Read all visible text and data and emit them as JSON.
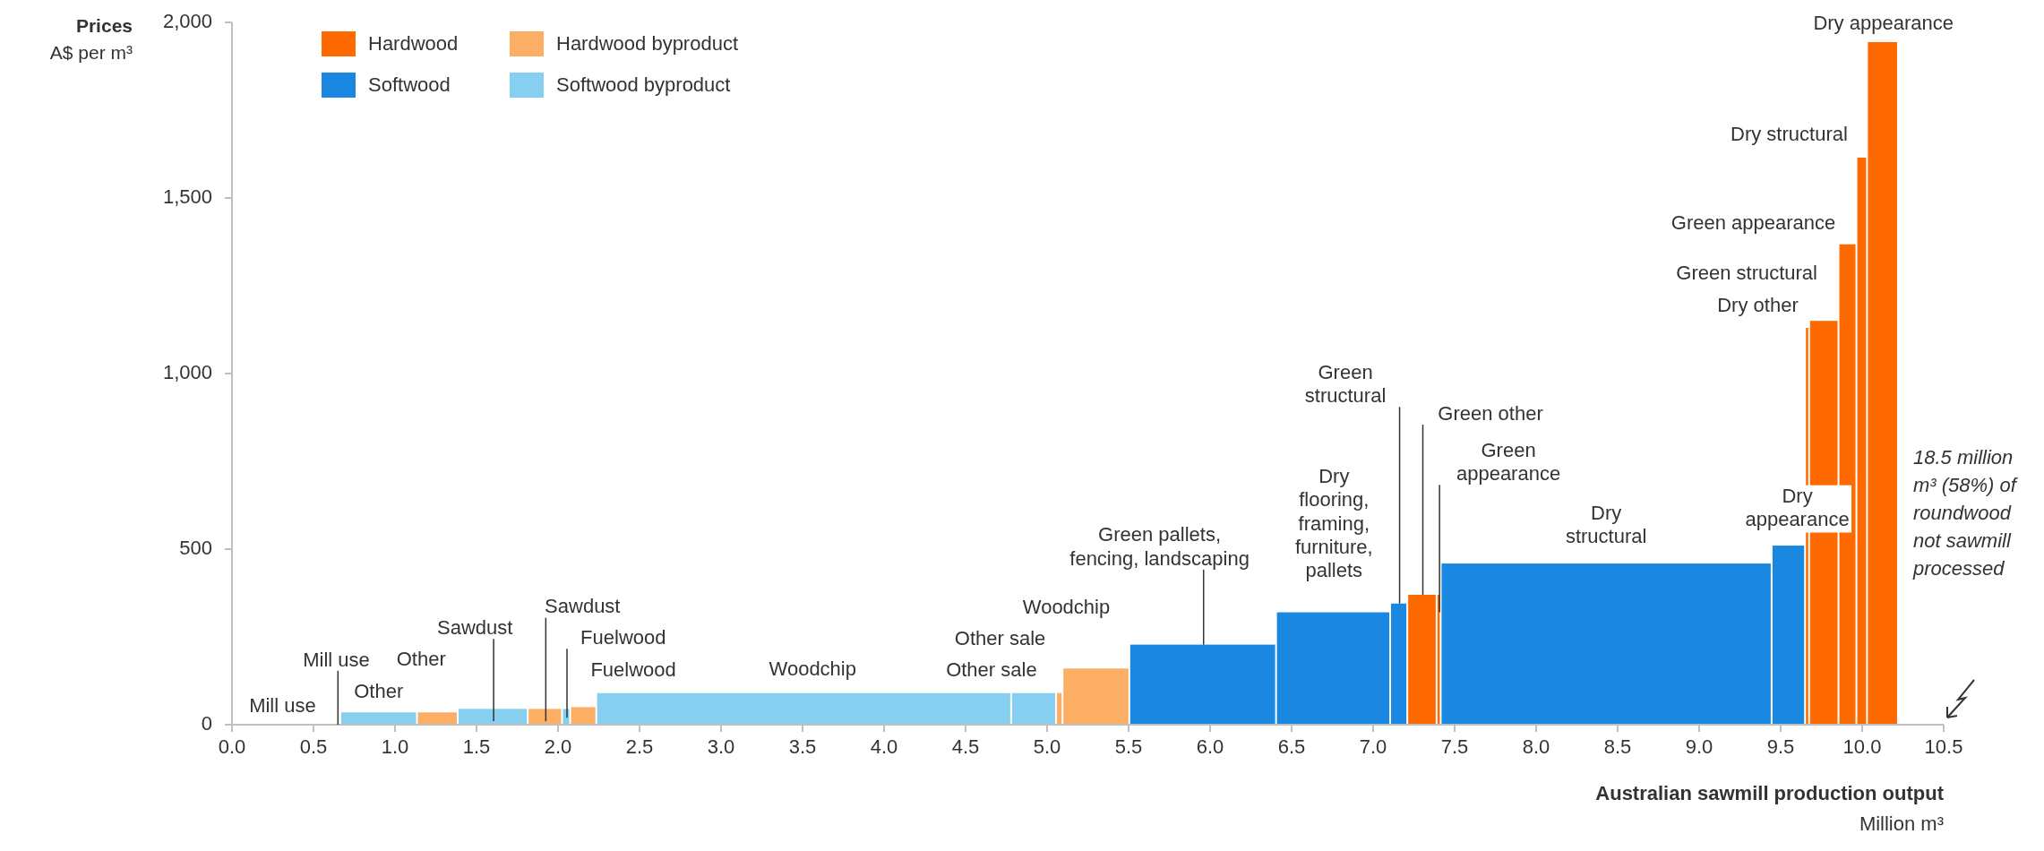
{
  "chart_data": {
    "type": "histogram",
    "ylabel": "Prices\nA$ per m³",
    "xlabel": "Australian sawmill production output\nMillion m³",
    "bins": [
      0.67,
      1.14,
      1.39,
      1.82,
      2.03,
      2.08,
      2.24,
      4.785,
      5.06,
      5.1,
      5.51,
      6.41,
      7.11,
      7.215,
      7.395,
      7.42,
      9.45,
      9.655,
      9.68,
      9.86,
      9.97,
      10.035,
      10.225
    ],
    "series": [
      {
        "name": "Hardwood",
        "color": "#ff6a00",
        "values": [
          null,
          null,
          null,
          null,
          null,
          null,
          null,
          null,
          null,
          null,
          null,
          null,
          null,
          370,
          370,
          null,
          null,
          1130,
          1150,
          1368,
          1615,
          1944
        ]
      },
      {
        "name": "Hardwood byproduct",
        "color": "#fcae65",
        "values": [
          null,
          35,
          null,
          45,
          null,
          50,
          null,
          null,
          90,
          160,
          null,
          null,
          null,
          null,
          null,
          null,
          null,
          null,
          null,
          null,
          null,
          null
        ]
      },
      {
        "name": "Softwood",
        "color": "#1a88e0",
        "values": [
          null,
          null,
          null,
          null,
          null,
          null,
          null,
          null,
          null,
          null,
          228,
          320,
          345,
          null,
          null,
          459,
          510,
          null,
          null,
          null,
          null,
          null
        ]
      },
      {
        "name": "Softwood byproduct",
        "color": "#86cff0",
        "values": [
          35,
          null,
          45,
          null,
          45,
          null,
          90,
          90,
          null,
          null,
          null,
          null,
          null,
          null,
          null,
          null,
          null,
          null,
          null,
          null,
          null,
          null
        ]
      }
    ],
    "xlim": [
      0,
      10.5
    ],
    "xticks": [
      {
        "value": 0,
        "label": "0.0"
      },
      {
        "value": 0.5,
        "label": "0.5"
      },
      {
        "value": 1,
        "label": "1.0"
      },
      {
        "value": 1.5,
        "label": "1.5"
      },
      {
        "value": 2,
        "label": "2.0"
      },
      {
        "value": 2.5,
        "label": "2.5"
      },
      {
        "value": 3,
        "label": "3.0"
      },
      {
        "value": 3.5,
        "label": "3.5"
      },
      {
        "value": 4,
        "label": "4.0"
      },
      {
        "value": 4.5,
        "label": "4.5"
      },
      {
        "value": 5,
        "label": "5.0"
      },
      {
        "value": 5.5,
        "label": "5.5"
      },
      {
        "value": 6,
        "label": "6.0"
      },
      {
        "value": 6.5,
        "label": "6.5"
      },
      {
        "value": 7,
        "label": "7.0"
      },
      {
        "value": 7.5,
        "label": "7.5"
      },
      {
        "value": 8,
        "label": "8.0"
      },
      {
        "value": 8.5,
        "label": "8.5"
      },
      {
        "value": 9,
        "label": "9.0"
      },
      {
        "value": 9.5,
        "label": "9.5"
      },
      {
        "value": 10,
        "label": "10.0"
      },
      {
        "value": 10.5,
        "label": "10.5"
      }
    ],
    "ylim": [
      0,
      2000
    ],
    "yticks": [
      0,
      500,
      {
        "value": 1000,
        "label": "1,000"
      },
      {
        "value": 1500,
        "label": "1,500"
      },
      {
        "value": 2000,
        "label": "2,000"
      }
    ],
    "legend": "top left",
    "annotations": [
      "Mill use",
      {
        "text": "Mill use",
        "x": 0.65,
        "y": 0
      },
      {
        "text": "Other",
        "x": 0.905,
        "y": 35
      },
      {
        "text": "Other",
        "x": 1.265,
        "y": 35
      },
      {
        "text": "Sawdust",
        "x": 1.605,
        "y": 10
      },
      {
        "text": "Sawdust",
        "x": 1.925,
        "y": 10
      },
      {
        "text": "Fuelwood",
        "x": 2.055,
        "y": 20
      },
      {
        "text": "Fuelwood",
        "x": 2.16,
        "y": 50
      },
      {
        "text": "Woodchip",
        "x": 3.5125,
        "y": 90
      },
      {
        "text": "Other sale",
        "x": 5.08,
        "y": 90
      },
      {
        "text": "Other sale",
        "x": 4.9225,
        "y": 90
      },
      {
        "text": "Woodchip",
        "x": 5.305,
        "y": 160
      },
      {
        "text": "Green pallets,\nfencing, landscaping",
        "x": 5.96,
        "y": 228
      },
      {
        "text": "Dry\nflooring,\nframing,\nfurniture,\npallets",
        "x": 6.76,
        "y": 320
      },
      {
        "text": "Green\nstructural",
        "x": 7.1625,
        "y": 345
      },
      {
        "text": "Green other",
        "x": 7.305,
        "y": 370
      },
      {
        "text": "Green\nappearance",
        "x": 7.4075,
        "y": 320
      },
      {
        "text": "Dry\nstructural",
        "x": 8.435,
        "y": 459
      },
      {
        "text": "Dry\nappearance",
        "x": 9.5525,
        "y": 510
      },
      {
        "text": "Dry other",
        "x": 9.6675,
        "y": 1130
      },
      {
        "text": "Green structural",
        "x": 9.77,
        "y": 1150
      },
      {
        "text": "Green appearance",
        "x": 9.915,
        "y": 1368
      },
      {
        "text": "Dry structural",
        "x": 10.0025,
        "y": 1615
      },
      {
        "text": "Dry appearance",
        "x": 10.13,
        "y": 1944
      },
      "18.5 million\nm³ (58%) of\nroundwood\nnot sawmill\nprocessed"
    ]
  }
}
